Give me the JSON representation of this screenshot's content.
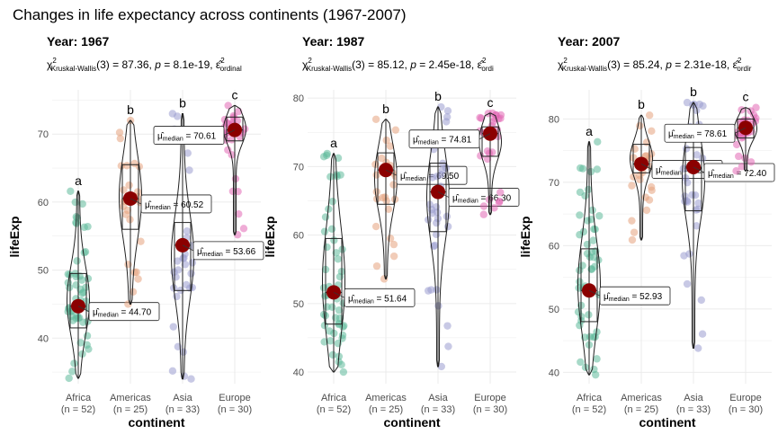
{
  "title": "Changes in life expectancy across continents (1967-2007)",
  "chart_data": [
    {
      "type": "violin-box",
      "subtitle": "Year: 1967",
      "stat_text": {
        "prefix": "(3) = 87.36, ",
        "p_part": "= 8.1e-19, ",
        "eps_sub": "ordinal"
      },
      "xlabel": "continent",
      "ylabel": "lifeExp",
      "ylim": [
        33.3,
        76.5
      ],
      "yticks": [
        40,
        50,
        60,
        70
      ],
      "categories": [
        "Africa",
        "Americas",
        "Asia",
        "Europe"
      ],
      "counts": [
        "(n = 52)",
        "(n = 25)",
        "(n = 33)",
        "(n = 30)"
      ],
      "letters": [
        "a",
        "b",
        "b",
        "c"
      ],
      "medians": [
        44.7,
        60.52,
        53.66,
        70.61
      ],
      "median_labels": [
        "= 44.70",
        "= 60.52",
        "= 53.66",
        "= 70.61"
      ],
      "q1": [
        41.5,
        56,
        47,
        69
      ],
      "q3": [
        49.5,
        65.5,
        57,
        72.5
      ],
      "mins": [
        34.1,
        45.0,
        34.0,
        55.2
      ],
      "maxs": [
        61.6,
        72.0,
        73.0,
        74.2
      ],
      "label_sides": [
        "right",
        "right",
        "right",
        "left"
      ]
    },
    {
      "type": "violin-box",
      "subtitle": "Year: 1987",
      "stat_text": {
        "prefix": "(3) = 85.12, ",
        "p_part": "= 2.45e-18, ",
        "eps_sub": "ordi"
      },
      "xlabel": "continent",
      "ylabel": "lifeExp",
      "ylim": [
        38.3,
        81.2
      ],
      "yticks": [
        40,
        50,
        60,
        70,
        80
      ],
      "categories": [
        "Africa",
        "Americas",
        "Asia",
        "Europe"
      ],
      "counts": [
        "(n = 52)",
        "(n = 25)",
        "(n = 33)",
        "(n = 30)"
      ],
      "letters": [
        "a",
        "b",
        "b",
        "c"
      ],
      "medians": [
        51.64,
        69.5,
        66.3,
        74.81
      ],
      "median_labels": [
        "= 51.64",
        "= 69.50",
        "= 66.30",
        "= 74.81"
      ],
      "q1": [
        47,
        64.5,
        60.5,
        71.5
      ],
      "q3": [
        59.5,
        72,
        70.5,
        75.8
      ],
      "mins": [
        40.0,
        53.6,
        40.8,
        63.0
      ],
      "maxs": [
        71.9,
        76.9,
        78.7,
        77.8
      ],
      "label_sides": [
        "right",
        "right",
        "right",
        "left"
      ]
    },
    {
      "type": "violin-box",
      "subtitle": "Year: 2007",
      "stat_text": {
        "prefix": "(3) = 85.24, ",
        "p_part": "= 2.31e-18, ",
        "eps_sub": "ordir"
      },
      "xlabel": "continent",
      "ylabel": "lifeExp",
      "ylim": [
        38.2,
        84.6
      ],
      "yticks": [
        40,
        50,
        60,
        70,
        80
      ],
      "categories": [
        "Africa",
        "Americas",
        "Asia",
        "Europe"
      ],
      "counts": [
        "(n = 52)",
        "(n = 25)",
        "(n = 33)",
        "(n = 30)"
      ],
      "letters": [
        "a",
        "b",
        "b",
        "c"
      ],
      "medians": [
        52.93,
        72.9,
        72.4,
        78.61
      ],
      "median_labels": [
        "= 52.93",
        "= 72.90",
        "= 72.40",
        "= 78.61"
      ],
      "q1": [
        48,
        71.5,
        65.5,
        77
      ],
      "q3": [
        59.5,
        76,
        75.5,
        80
      ],
      "mins": [
        39.6,
        60.9,
        43.8,
        71.8
      ],
      "maxs": [
        76.4,
        80.6,
        82.6,
        81.8
      ],
      "label_sides": [
        "right",
        "right",
        "right",
        "left"
      ]
    }
  ],
  "colors": {
    "africa": "#5fb99a",
    "americas": "#e6a37e",
    "asia": "#9a9ccf",
    "europe": "#e168b4",
    "median_point": "#8b0000",
    "grid": "#ebebeb",
    "axis_text": "#4d4d4d"
  }
}
